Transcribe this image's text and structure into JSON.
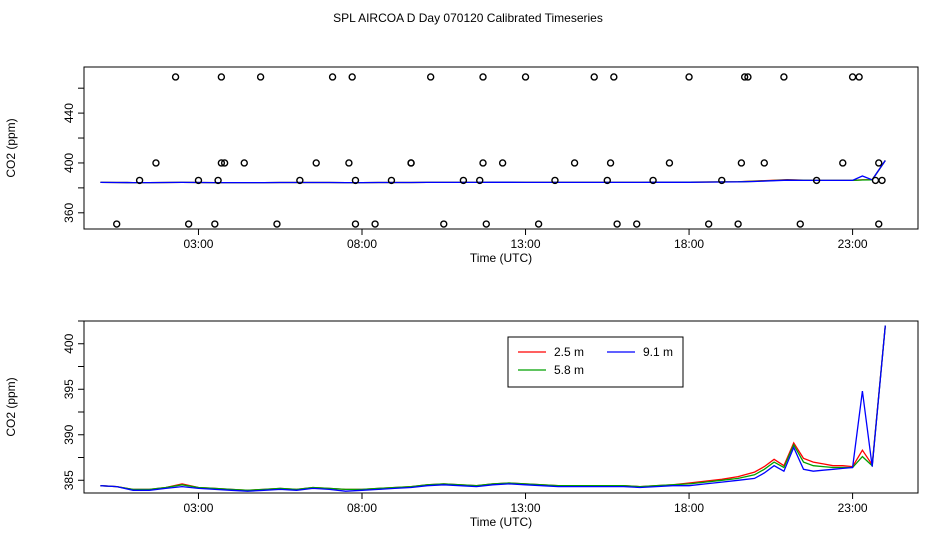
{
  "title": "SPL AIRCOA D  Day 070120  Calibrated Timeseries",
  "chart_data": [
    {
      "type": "scatter",
      "xlabel": "Time (UTC)",
      "ylabel": "CO2 (ppm)",
      "xlim": [
        -0.5,
        25
      ],
      "ylim": [
        347,
        477
      ],
      "xticks": [
        3,
        8,
        13,
        18,
        23
      ],
      "xtick_labels": [
        "03:00",
        "08:00",
        "13:00",
        "18:00",
        "23:00"
      ],
      "yticks": [
        360,
        400,
        440
      ],
      "ytick_labels": [
        "360",
        "400",
        "440"
      ],
      "outlier_points": {
        "x": [
          0.5,
          1.2,
          1.7,
          2.3,
          2.7,
          3.0,
          3.5,
          3.6,
          3.7,
          3.7,
          3.8,
          4.4,
          4.9,
          5.4,
          6.1,
          6.6,
          7.1,
          7.6,
          7.7,
          7.8,
          7.8,
          8.4,
          8.9,
          9.5,
          9.5,
          10.1,
          10.5,
          11.1,
          11.6,
          11.7,
          11.7,
          11.8,
          12.3,
          13.0,
          13.4,
          13.9,
          14.5,
          15.1,
          15.5,
          15.6,
          15.7,
          15.8,
          16.4,
          16.9,
          17.4,
          18.0,
          18.6,
          19.0,
          19.5,
          19.6,
          19.7,
          19.8,
          20.3,
          20.9,
          21.4,
          21.9,
          22.7,
          23.0,
          23.2,
          23.7,
          23.8,
          23.8,
          23.9
        ],
        "y": [
          351,
          386,
          400,
          469,
          351,
          386,
          351,
          386,
          400,
          469,
          400,
          400,
          469,
          351,
          386,
          400,
          469,
          400,
          469,
          386,
          351,
          351,
          386,
          400,
          400,
          469,
          351,
          386,
          386,
          400,
          469,
          351,
          400,
          469,
          351,
          386,
          400,
          469,
          386,
          400,
          469,
          351,
          351,
          386,
          400,
          469,
          351,
          386,
          351,
          400,
          469,
          469,
          400,
          469,
          351,
          386,
          400,
          469,
          469,
          386,
          400,
          351,
          386
        ]
      },
      "series": [
        {
          "name": "2.5 m",
          "color": "#ff0000",
          "x": [
            0,
            0.5,
            1,
            1.5,
            2,
            2.5,
            3,
            3.5,
            4,
            4.5,
            5,
            5.5,
            6,
            6.5,
            7,
            7.5,
            8,
            8.5,
            9,
            9.5,
            10,
            10.5,
            11,
            11.5,
            12,
            12.5,
            13,
            13.5,
            14,
            14.5,
            15,
            15.5,
            16,
            16.5,
            17,
            17.5,
            18,
            18.5,
            19,
            19.5,
            20,
            20.5,
            21,
            21.5,
            22,
            22.5,
            23,
            23.3,
            23.6,
            24
          ],
          "y": [
            384.4,
            384.3,
            384.2,
            384.2,
            384.3,
            384.4,
            384.3,
            384.2,
            384.2,
            384.2,
            384.2,
            384.3,
            384.3,
            384.3,
            384.3,
            384.2,
            384.2,
            384.3,
            384.3,
            384.3,
            384.4,
            384.4,
            384.4,
            384.4,
            384.5,
            384.5,
            384.4,
            384.4,
            384.4,
            384.4,
            384.4,
            384.4,
            384.4,
            384.4,
            384.5,
            384.5,
            384.6,
            384.7,
            384.8,
            384.9,
            385.5,
            386.0,
            386.6,
            386.2,
            386.0,
            386.0,
            386.0,
            386.5,
            386.5,
            402.0
          ]
        },
        {
          "name": "5.8 m",
          "color": "#00a000",
          "x": [
            0,
            0.5,
            1,
            1.5,
            2,
            2.5,
            3,
            3.5,
            4,
            4.5,
            5,
            5.5,
            6,
            6.5,
            7,
            7.5,
            8,
            8.5,
            9,
            9.5,
            10,
            10.5,
            11,
            11.5,
            12,
            12.5,
            13,
            13.5,
            14,
            14.5,
            15,
            15.5,
            16,
            16.5,
            17,
            17.5,
            18,
            18.5,
            19,
            19.5,
            20,
            20.5,
            21,
            21.5,
            22,
            22.5,
            23,
            23.3,
            23.6,
            24
          ],
          "y": [
            384.4,
            384.3,
            384.2,
            384.2,
            384.3,
            384.4,
            384.3,
            384.2,
            384.2,
            384.2,
            384.2,
            384.3,
            384.3,
            384.3,
            384.3,
            384.2,
            384.2,
            384.3,
            384.3,
            384.3,
            384.4,
            384.4,
            384.4,
            384.4,
            384.5,
            384.5,
            384.4,
            384.4,
            384.4,
            384.4,
            384.4,
            384.4,
            384.4,
            384.4,
            384.5,
            384.5,
            384.6,
            384.7,
            384.8,
            384.9,
            385.3,
            385.8,
            386.4,
            386.1,
            386.0,
            386.0,
            386.0,
            386.3,
            386.5,
            402.0
          ]
        },
        {
          "name": "9.1 m",
          "color": "#0000ff",
          "x": [
            0,
            0.5,
            1,
            1.5,
            2,
            2.5,
            3,
            3.5,
            4,
            4.5,
            5,
            5.5,
            6,
            6.5,
            7,
            7.5,
            8,
            8.5,
            9,
            9.5,
            10,
            10.5,
            11,
            11.5,
            12,
            12.5,
            13,
            13.5,
            14,
            14.5,
            15,
            15.5,
            16,
            16.5,
            17,
            17.5,
            18,
            18.5,
            19,
            19.5,
            20,
            20.5,
            21,
            21.5,
            22,
            22.5,
            23,
            23.3,
            23.6,
            24
          ],
          "y": [
            384.4,
            384.3,
            384.2,
            384.2,
            384.3,
            384.4,
            384.3,
            384.2,
            384.2,
            384.2,
            384.2,
            384.3,
            384.3,
            384.3,
            384.3,
            384.2,
            384.2,
            384.3,
            384.3,
            384.3,
            384.4,
            384.4,
            384.4,
            384.4,
            384.5,
            384.5,
            384.4,
            384.4,
            384.4,
            384.4,
            384.4,
            384.4,
            384.4,
            384.4,
            384.5,
            384.5,
            384.5,
            384.6,
            384.7,
            384.8,
            385.1,
            385.7,
            386.2,
            386.0,
            386.0,
            386.0,
            386.0,
            389.5,
            386.5,
            402.0
          ]
        }
      ]
    },
    {
      "type": "line",
      "xlabel": "Time (UTC)",
      "ylabel": "CO2 (ppm)",
      "xlim": [
        -0.5,
        25
      ],
      "ylim": [
        383.6,
        402.5
      ],
      "xticks": [
        3,
        8,
        13,
        18,
        23
      ],
      "xtick_labels": [
        "03:00",
        "08:00",
        "13:00",
        "18:00",
        "23:00"
      ],
      "yticks": [
        385,
        390,
        395,
        400
      ],
      "ytick_labels": [
        "385",
        "390",
        "395",
        "400"
      ],
      "legend_position": "top-center",
      "series": [
        {
          "name": "2.5 m",
          "color": "#ff0000",
          "x": [
            0,
            0.5,
            1,
            1.5,
            2,
            2.5,
            3,
            3.5,
            4,
            4.5,
            5,
            5.5,
            6,
            6.5,
            7,
            7.5,
            8,
            8.5,
            9,
            9.5,
            10,
            10.5,
            11,
            11.5,
            12,
            12.5,
            13,
            13.5,
            14,
            14.5,
            15,
            15.5,
            16,
            16.5,
            17,
            17.5,
            18,
            18.5,
            19,
            19.5,
            20,
            20.3,
            20.6,
            20.9,
            21.2,
            21.5,
            21.8,
            22.1,
            22.4,
            22.7,
            23.0,
            23.3,
            23.6,
            24
          ],
          "y": [
            384.4,
            384.3,
            384.0,
            384.0,
            384.2,
            384.6,
            384.2,
            384.1,
            384.0,
            383.9,
            384.0,
            384.1,
            384.0,
            384.2,
            384.1,
            384.0,
            384.0,
            384.1,
            384.2,
            384.3,
            384.5,
            384.6,
            384.5,
            384.4,
            384.6,
            384.7,
            384.6,
            384.5,
            384.4,
            384.4,
            384.4,
            384.4,
            384.4,
            384.3,
            384.4,
            384.5,
            384.7,
            384.9,
            385.1,
            385.4,
            385.9,
            386.5,
            387.3,
            386.6,
            389.1,
            387.4,
            387.0,
            386.8,
            386.6,
            386.6,
            386.5,
            388.3,
            386.7,
            402.0
          ]
        },
        {
          "name": "5.8 m",
          "color": "#00a000",
          "x": [
            0,
            0.5,
            1,
            1.5,
            2,
            2.5,
            3,
            3.5,
            4,
            4.5,
            5,
            5.5,
            6,
            6.5,
            7,
            7.5,
            8,
            8.5,
            9,
            9.5,
            10,
            10.5,
            11,
            11.5,
            12,
            12.5,
            13,
            13.5,
            14,
            14.5,
            15,
            15.5,
            16,
            16.5,
            17,
            17.5,
            18,
            18.5,
            19,
            19.5,
            20,
            20.3,
            20.6,
            20.9,
            21.2,
            21.5,
            21.8,
            22.1,
            22.4,
            22.7,
            23.0,
            23.3,
            23.6,
            24
          ],
          "y": [
            384.4,
            384.3,
            384.0,
            384.0,
            384.2,
            384.5,
            384.2,
            384.1,
            384.0,
            383.9,
            384.0,
            384.1,
            384.0,
            384.2,
            384.1,
            384.0,
            384.0,
            384.1,
            384.2,
            384.3,
            384.5,
            384.6,
            384.5,
            384.4,
            384.6,
            384.7,
            384.6,
            384.5,
            384.4,
            384.4,
            384.4,
            384.4,
            384.4,
            384.3,
            384.4,
            384.5,
            384.6,
            384.8,
            385.0,
            385.2,
            385.6,
            386.2,
            387.0,
            386.4,
            388.9,
            387.0,
            386.6,
            386.5,
            386.4,
            386.4,
            386.4,
            387.6,
            386.6,
            402.0
          ]
        },
        {
          "name": "9.1 m",
          "color": "#0000ff",
          "x": [
            0,
            0.5,
            1,
            1.5,
            2,
            2.5,
            3,
            3.5,
            4,
            4.5,
            5,
            5.5,
            6,
            6.5,
            7,
            7.5,
            8,
            8.5,
            9,
            9.5,
            10,
            10.5,
            11,
            11.5,
            12,
            12.5,
            13,
            13.5,
            14,
            14.5,
            15,
            15.5,
            16,
            16.5,
            17,
            17.5,
            18,
            18.5,
            19,
            19.5,
            20,
            20.3,
            20.6,
            20.9,
            21.2,
            21.5,
            21.8,
            22.1,
            22.4,
            22.7,
            23.0,
            23.3,
            23.6,
            24
          ],
          "y": [
            384.4,
            384.3,
            383.9,
            383.9,
            384.1,
            384.3,
            384.1,
            384.0,
            383.9,
            383.8,
            383.9,
            384.0,
            383.9,
            384.1,
            384.0,
            383.8,
            383.9,
            384.0,
            384.1,
            384.2,
            384.4,
            384.5,
            384.4,
            384.3,
            384.5,
            384.6,
            384.5,
            384.4,
            384.3,
            384.3,
            384.3,
            384.3,
            384.3,
            384.2,
            384.3,
            384.4,
            384.4,
            384.6,
            384.8,
            385.0,
            385.2,
            385.8,
            386.6,
            386.0,
            388.6,
            386.2,
            386.0,
            386.1,
            386.2,
            386.3,
            386.4,
            394.8,
            386.5,
            402.0
          ]
        }
      ]
    }
  ]
}
